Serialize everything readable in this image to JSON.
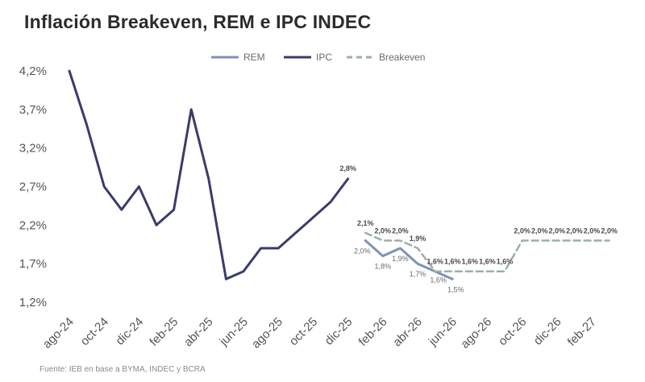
{
  "chart_data": {
    "type": "line",
    "title": "Inflación Breakeven, REM e IPC INDEC",
    "source": "Fuente: IEB en base a BYMA,  INDEC y BCRA",
    "xlabel": "",
    "ylabel": "",
    "ylim": [
      1.2,
      4.2
    ],
    "y_ticks": [
      "4,2%",
      "3,7%",
      "3,2%",
      "2,7%",
      "2,2%",
      "1,7%",
      "1,2%"
    ],
    "y_tick_values": [
      4.2,
      3.7,
      3.2,
      2.7,
      2.2,
      1.7,
      1.2
    ],
    "x_ticks": [
      "ago-24",
      "oct-24",
      "dic-24",
      "feb-25",
      "abr-25",
      "jun-25",
      "ago-25",
      "oct-25",
      "dic-25",
      "feb-26",
      "abr-26",
      "jun-26",
      "ago-26",
      "oct-26",
      "dic-26",
      "feb-27"
    ],
    "x_tick_index": [
      0,
      2,
      4,
      6,
      8,
      10,
      12,
      14,
      16,
      18,
      20,
      22,
      24,
      26,
      28,
      30
    ],
    "legend": [
      "REM",
      "IPC",
      "Breakeven"
    ],
    "legend_position": "top",
    "series": [
      {
        "name": "IPC",
        "color": "#3b3b6b",
        "style": "solid",
        "x_index": [
          0,
          1,
          2,
          3,
          4,
          5,
          6,
          7,
          8,
          9,
          10,
          11,
          12,
          13,
          14,
          15,
          16
        ],
        "values": [
          4.2,
          3.5,
          2.7,
          2.4,
          2.7,
          2.2,
          2.4,
          3.7,
          2.8,
          1.5,
          1.6,
          1.9,
          1.9,
          2.1,
          2.3,
          2.5,
          2.8
        ],
        "labels": {
          "16": "2,8%"
        }
      },
      {
        "name": "REM",
        "color": "#7d93b8",
        "style": "solid",
        "x_index": [
          17,
          18,
          19,
          20,
          21,
          22
        ],
        "values": [
          2.0,
          1.8,
          1.9,
          1.7,
          1.6,
          1.5
        ],
        "labels": [
          "2,0%",
          "1,8%",
          "1,9%",
          "1,7%",
          "1,6%",
          "1,5%"
        ]
      },
      {
        "name": "Breakeven",
        "color": "#9bb0a6",
        "style": "dashed",
        "x_index": [
          17,
          18,
          19,
          20,
          21,
          22,
          23,
          24,
          25,
          26,
          27,
          28,
          29,
          30,
          31
        ],
        "values": [
          2.1,
          2.0,
          2.0,
          1.9,
          1.6,
          1.6,
          1.6,
          1.6,
          1.6,
          2.0,
          2.0,
          2.0,
          2.0,
          2.0,
          2.0
        ],
        "labels": [
          "2,1%",
          "2,0%",
          "2,0%",
          "1,9%",
          "1,6%",
          "1,6%",
          "1,6%",
          "1,6%",
          "1,6%",
          "2,0%",
          "2,0%",
          "2,0%",
          "2,0%",
          "2,0%",
          "2,0%"
        ]
      }
    ]
  }
}
